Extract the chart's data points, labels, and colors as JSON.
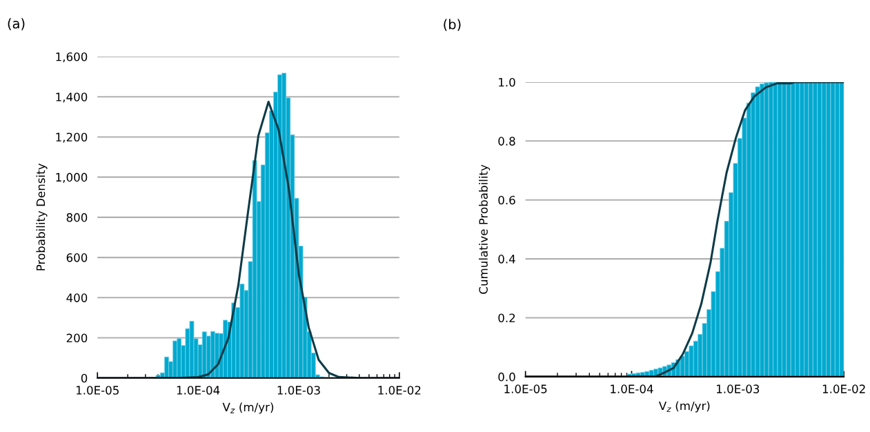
{
  "chart_data": [
    {
      "type": "histogram",
      "title": "(a)",
      "xlabel": "V$_{z}$ (m/yr)",
      "ylabel": "Probability Density",
      "log": "x",
      "grid": "y",
      "color": "#00a9cf",
      "bins": [
        3.831e-05,
        4.217e-05,
        4.642e-05,
        5.109e-05,
        5.623e-05,
        6.19e-05,
        6.813e-05,
        7.499e-05,
        8.254e-05,
        9.085e-05,
        0.0001,
        0.0001101,
        0.0001212,
        0.0001334,
        0.0001468,
        0.0001616,
        0.0001778,
        0.0001957,
        0.0002154,
        0.0002371,
        0.000261,
        0.0002873,
        0.0003162,
        0.0003481,
        0.0003831,
        0.0004217,
        0.0004642,
        0.0005109,
        0.0005623,
        0.000619,
        0.0006813,
        0.0007499,
        0.0008254,
        0.0009085,
        0.001,
        0.001101,
        0.001212,
        0.001334,
        0.001468,
        0.001616,
        0.001778,
        0.001957,
        0.002154,
        0.002371,
        0.00261
      ],
      "values": [
        15,
        26,
        105,
        82,
        185,
        197,
        162,
        246,
        283,
        196,
        166,
        230,
        209,
        232,
        223,
        222,
        288,
        279,
        374,
        351,
        468,
        436,
        580,
        1083,
        879,
        1061,
        1221,
        1330,
        1424,
        1510,
        1518,
        1395,
        1211,
        895,
        657,
        403,
        231,
        125,
        16,
        6,
        4,
        3,
        3,
        2
      ],
      "series": [
        {
          "type": "line",
          "color": "#0d3b47",
          "x": [
            1e-05,
            3.98e-05,
            6.31e-05,
            0.0001,
            0.000126,
            0.000158,
            0.0002,
            0.000251,
            0.000316,
            0.000398,
            0.000501,
            0.000631,
            0.000794,
            0.001,
            0.00126,
            0.00158,
            0.002,
            0.00251,
            0.00398,
            0.01
          ],
          "values": [
            0,
            0,
            0,
            4,
            18,
            68,
            199,
            460,
            838,
            1207,
            1375,
            1237,
            950,
            520,
            250,
            90,
            25,
            5,
            0,
            0
          ]
        }
      ],
      "xlim": [
        1e-05,
        0.01
      ],
      "xticks": [
        {
          "value": 1e-05,
          "label": "1.0E-05"
        },
        {
          "value": 0.0001,
          "label": "1.0E-04"
        },
        {
          "value": 0.001,
          "label": "1.0E-03"
        },
        {
          "value": 0.01,
          "label": "1.0E-02"
        }
      ],
      "ylim": [
        0,
        1600
      ],
      "yticks": [
        {
          "value": 0,
          "label": "0"
        },
        {
          "value": 200,
          "label": "200"
        },
        {
          "value": 400,
          "label": "400"
        },
        {
          "value": 600,
          "label": "600"
        },
        {
          "value": 800,
          "label": "800"
        },
        {
          "value": 1000,
          "label": "1,000"
        },
        {
          "value": 1200,
          "label": "1,200"
        },
        {
          "value": 1400,
          "label": "1,400"
        },
        {
          "value": 1600,
          "label": "1,600"
        }
      ]
    },
    {
      "type": "histogram",
      "title": "(b)",
      "xlabel": "V$_{z}$ (m/yr)",
      "ylabel": "Cumulative Probability",
      "log": "x",
      "grid": "y",
      "color": "#00a9cf",
      "bins": [
        9.085e-05,
        0.0001,
        0.0001101,
        0.0001212,
        0.0001334,
        0.0001468,
        0.0001616,
        0.0001778,
        0.0001957,
        0.0002154,
        0.0002371,
        0.000261,
        0.0002873,
        0.0003162,
        0.0003481,
        0.0003831,
        0.0004217,
        0.0004642,
        0.0005109,
        0.0005623,
        0.000619,
        0.0006813,
        0.0007499,
        0.0008254,
        0.0009085,
        0.001,
        0.001101,
        0.001212,
        0.001334,
        0.001468,
        0.001616,
        0.001778,
        0.001957,
        0.002154,
        0.002371,
        0.00261,
        0.002873,
        0.003162,
        0.003481,
        0.003831,
        0.004217,
        0.004642,
        0.005109,
        0.005623,
        0.00619,
        0.006813,
        0.007499,
        0.008254,
        0.009085,
        0.01
      ],
      "values": [
        0.009,
        0.011,
        0.013,
        0.015,
        0.018,
        0.022,
        0.026,
        0.03,
        0.035,
        0.04,
        0.048,
        0.058,
        0.07,
        0.086,
        0.105,
        0.121,
        0.144,
        0.181,
        0.228,
        0.289,
        0.357,
        0.436,
        0.528,
        0.625,
        0.724,
        0.809,
        0.878,
        0.929,
        0.964,
        0.984,
        0.994,
        0.998,
        1.0,
        1.0,
        1.0,
        1.0,
        1.0,
        1.0,
        1.0,
        1.0,
        1.0,
        1.0,
        1.0,
        1.0,
        1.0,
        1.0,
        1.0,
        1.0,
        1.0
      ],
      "series": [
        {
          "type": "line",
          "color": "#0d3b47",
          "x": [
            1e-05,
            0.000167,
            0.000204,
            0.000249,
            0.000304,
            0.000372,
            0.000454,
            0.000555,
            0.000644,
            0.000785,
            0.000959,
            0.00117,
            0.00143,
            0.00184,
            0.00236,
            0.00318,
            0.00344,
            0.01
          ],
          "values": [
            0,
            0,
            0.014,
            0.03,
            0.077,
            0.147,
            0.248,
            0.389,
            0.529,
            0.693,
            0.81,
            0.904,
            0.951,
            0.982,
            0.996,
            0.996,
            1.0,
            1.0
          ]
        }
      ],
      "xlim": [
        1e-05,
        0.01
      ],
      "xticks": [
        {
          "value": 1e-05,
          "label": "1.0E-05"
        },
        {
          "value": 0.0001,
          "label": "1.0E-04"
        },
        {
          "value": 0.001,
          "label": "1.0E-03"
        },
        {
          "value": 0.01,
          "label": "1.0E-02"
        }
      ],
      "ylim": [
        0,
        1.0
      ],
      "yticks": [
        {
          "value": 0,
          "label": "0.0"
        },
        {
          "value": 0.2,
          "label": "0.2"
        },
        {
          "value": 0.4,
          "label": "0.4"
        },
        {
          "value": 0.6,
          "label": "0.6"
        },
        {
          "value": 0.8,
          "label": "0.8"
        },
        {
          "value": 1.0,
          "label": "1.0"
        }
      ]
    }
  ]
}
